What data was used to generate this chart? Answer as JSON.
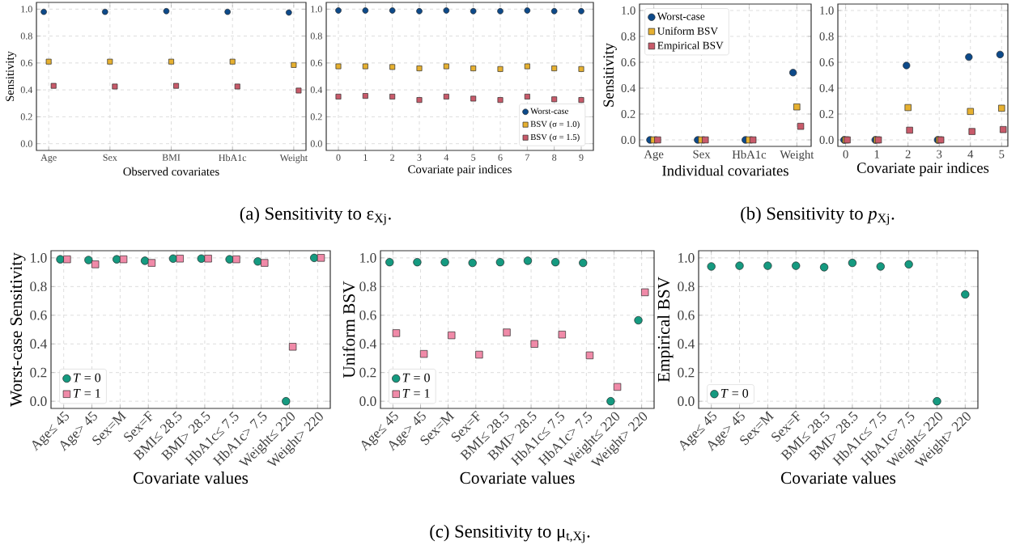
{
  "chart_data": [
    {
      "type": "scatter",
      "ylabel": "Sensitivity",
      "xlabel": "Observed covariates",
      "categories": [
        "Age",
        "Sex",
        "BMI",
        "HbA1c",
        "Weight"
      ],
      "ylim": [
        -0.05,
        1.05
      ],
      "yticks": [
        {
          "value": 0,
          "label": "0.0"
        },
        {
          "value": 0.2,
          "label": "0.2"
        },
        {
          "value": 0.4,
          "label": "0.4"
        },
        {
          "value": 0.6,
          "label": "0.6"
        },
        {
          "value": 0.8,
          "label": "0.8"
        },
        {
          "value": 1,
          "label": "1.0"
        }
      ],
      "grid": true,
      "legend": false,
      "annotations": [
        "(a) Sensitivity to ε$_{Xj}$."
      ],
      "series": [
        {
          "color": "#0d4a8a",
          "marker": "circle",
          "values": [
            0.98,
            0.98,
            0.985,
            0.98,
            0.975
          ]
        },
        {
          "color": "#e6b030",
          "marker": "square",
          "values": [
            0.61,
            0.61,
            0.61,
            0.61,
            0.585
          ]
        },
        {
          "color": "#c85a6a",
          "marker": "square",
          "values": [
            0.43,
            0.425,
            0.43,
            0.425,
            0.395
          ]
        }
      ]
    },
    {
      "type": "scatter",
      "xlabel": "Covariate pair indices",
      "x": [
        0,
        1,
        2,
        3,
        4,
        5,
        6,
        7,
        8,
        9
      ],
      "xlim": [
        -0.45,
        9.45
      ],
      "xticks": [
        0,
        1,
        2,
        3,
        4,
        5,
        6,
        7,
        8,
        9
      ],
      "ylim": [
        -0.05,
        1.05
      ],
      "yticks": [
        {
          "value": 0,
          "label": "0.0"
        },
        {
          "value": 0.2,
          "label": "0.2"
        },
        {
          "value": 0.4,
          "label": "0.4"
        },
        {
          "value": 0.6,
          "label": "0.6"
        },
        {
          "value": 0.8,
          "label": "0.8"
        },
        {
          "value": 1,
          "label": "1.0"
        }
      ],
      "grid": true,
      "legend": "bottom right",
      "series": [
        {
          "name": "Worst-case",
          "color": "#0d4a8a",
          "marker": "circle",
          "values": [
            0.99,
            0.99,
            0.99,
            0.985,
            0.99,
            0.985,
            0.985,
            0.99,
            0.985,
            0.985
          ]
        },
        {
          "name": "BSV (σ = 1.0)",
          "color": "#e6b030",
          "marker": "square",
          "values": [
            0.575,
            0.575,
            0.57,
            0.56,
            0.575,
            0.56,
            0.555,
            0.575,
            0.56,
            0.555
          ]
        },
        {
          "name": "BSV (σ = 1.5)",
          "color": "#c85a6a",
          "marker": "square",
          "values": [
            0.35,
            0.355,
            0.35,
            0.325,
            0.35,
            0.335,
            0.325,
            0.35,
            0.33,
            0.325
          ]
        }
      ]
    },
    {
      "type": "scatter",
      "ylabel": "Sensitivity",
      "xlabel": "Individual covariates",
      "categories": [
        "Age",
        "Sex",
        "HbA1c",
        "Weight"
      ],
      "ylim": [
        -0.05,
        1.05
      ],
      "yticks": [
        {
          "value": 0,
          "label": "0.0"
        },
        {
          "value": 0.2,
          "label": "0.2"
        },
        {
          "value": 0.4,
          "label": "0.4"
        },
        {
          "value": 0.6,
          "label": "0.6"
        },
        {
          "value": 0.8,
          "label": "0.8"
        },
        {
          "value": 1,
          "label": "1.0"
        }
      ],
      "grid": true,
      "legend": "top left",
      "annotations": [
        "(b) Sensitivity to *p*$_{Xj}$."
      ],
      "series": [
        {
          "name": "Worst-case",
          "color": "#0d4a8a",
          "marker": "circle",
          "values": [
            0,
            0,
            0,
            0.52
          ]
        },
        {
          "name": "Uniform BSV",
          "color": "#e6b030",
          "marker": "square",
          "values": [
            0,
            0,
            0,
            0.255
          ]
        },
        {
          "name": "Empirical BSV",
          "color": "#c85a6a",
          "marker": "square",
          "values": [
            0,
            0,
            0,
            0.105
          ]
        }
      ]
    },
    {
      "type": "scatter",
      "xlabel": "Covariate pair indices",
      "x": [
        0,
        1,
        2,
        3,
        4,
        5
      ],
      "xlim": [
        -0.25,
        5.2
      ],
      "xticks": [
        0,
        1,
        2,
        3,
        4,
        5
      ],
      "ylim": [
        -0.05,
        1.05
      ],
      "yticks": [
        {
          "value": 0,
          "label": "0.0"
        },
        {
          "value": 0.2,
          "label": "0.2"
        },
        {
          "value": 0.4,
          "label": "0.4"
        },
        {
          "value": 0.6,
          "label": "0.6"
        },
        {
          "value": 0.8,
          "label": "0.8"
        },
        {
          "value": 1,
          "label": "1.0"
        }
      ],
      "grid": true,
      "legend": false,
      "series": [
        {
          "color": "#0d4a8a",
          "marker": "circle",
          "x": [
            -0.05,
            0.95,
            1.95,
            2.95,
            3.95,
            4.95
          ],
          "values": [
            0,
            0,
            0.575,
            0,
            0.64,
            0.66
          ]
        },
        {
          "color": "#e6b030",
          "marker": "square",
          "values": [
            0,
            0,
            0.25,
            0,
            0.22,
            0.245
          ]
        },
        {
          "color": "#c85a6a",
          "marker": "square",
          "x": [
            0.05,
            1.05,
            2.05,
            3.05,
            4.05,
            5.05
          ],
          "values": [
            0,
            0,
            0.075,
            0,
            0.065,
            0.08
          ]
        }
      ]
    },
    {
      "type": "scatter",
      "ylabel": "Worst-case Sensitivity",
      "xlabel": "Covariate values",
      "categories": [
        "Age≤ 45",
        "Age> 45",
        "Sex=M",
        "Sex=F",
        "BMI≤ 28.5",
        "BMI> 28.5",
        "HbA1c≤ 7.5",
        "HbA1c> 7.5",
        "Weight≤ 220",
        "Weight> 220"
      ],
      "ylim": [
        -0.05,
        1.05
      ],
      "yticks": [
        {
          "value": 0,
          "label": "0.0"
        },
        {
          "value": 0.2,
          "label": "0.2"
        },
        {
          "value": 0.4,
          "label": "0.4"
        },
        {
          "value": 0.6,
          "label": "0.6"
        },
        {
          "value": 0.8,
          "label": "0.8"
        },
        {
          "value": 1,
          "label": "1.0"
        }
      ],
      "grid": true,
      "legend": "bottom left",
      "annotations": [
        "(c) Sensitivity to μ$_{t,Xj}$."
      ],
      "series": [
        {
          "name": "*T* = 0",
          "color": "#159a80",
          "marker": "circle",
          "values": [
            0.99,
            0.985,
            0.99,
            0.98,
            0.995,
            0.995,
            0.99,
            0.975,
            0,
            1.0
          ]
        },
        {
          "name": "*T* = 1",
          "color": "#f08aa8",
          "marker": "square",
          "values": [
            0.99,
            0.955,
            0.99,
            0.965,
            0.995,
            0.995,
            0.99,
            0.965,
            0.38,
            1.0
          ]
        }
      ]
    },
    {
      "type": "scatter",
      "ylabel": "Uniform BSV",
      "xlabel": "Covariate values",
      "categories": [
        "Age≤ 45",
        "Age> 45",
        "Sex=M",
        "Sex=F",
        "BMI≤ 28.5",
        "BMI> 28.5",
        "HbA1c≤ 7.5",
        "HbA1c> 7.5",
        "Weight≤ 220",
        "Weight> 220"
      ],
      "ylim": [
        -0.05,
        1.05
      ],
      "yticks": [
        {
          "value": 0,
          "label": "0.0"
        },
        {
          "value": 0.2,
          "label": "0.2"
        },
        {
          "value": 0.4,
          "label": "0.4"
        },
        {
          "value": 0.6,
          "label": "0.6"
        },
        {
          "value": 0.8,
          "label": "0.8"
        },
        {
          "value": 1,
          "label": "1.0"
        }
      ],
      "grid": true,
      "legend": "bottom left",
      "series": [
        {
          "name": "*T* = 0",
          "color": "#159a80",
          "marker": "circle",
          "values": [
            0.97,
            0.97,
            0.97,
            0.965,
            0.97,
            0.98,
            0.97,
            0.965,
            0,
            0.565
          ]
        },
        {
          "name": "*T* = 1",
          "color": "#f08aa8",
          "marker": "square",
          "values": [
            0.475,
            0.33,
            0.46,
            0.325,
            0.48,
            0.4,
            0.465,
            0.32,
            0.1,
            0.76
          ]
        }
      ]
    },
    {
      "type": "scatter",
      "ylabel": "Empirical BSV",
      "xlabel": "Covariate values",
      "categories": [
        "Age≤ 45",
        "Age> 45",
        "Sex=M",
        "Sex=F",
        "BMI≤ 28.5",
        "BMI> 28.5",
        "HbA1c≤ 7.5",
        "HbA1c> 7.5",
        "Weight≤ 220",
        "Weight> 220"
      ],
      "ylim": [
        -0.05,
        1.05
      ],
      "yticks": [
        {
          "value": 0,
          "label": "0.0"
        },
        {
          "value": 0.2,
          "label": "0.2"
        },
        {
          "value": 0.4,
          "label": "0.4"
        },
        {
          "value": 0.6,
          "label": "0.6"
        },
        {
          "value": 0.8,
          "label": "0.8"
        },
        {
          "value": 1,
          "label": "1.0"
        }
      ],
      "grid": true,
      "legend": "bottom left",
      "series": [
        {
          "name": "*T* = 0",
          "color": "#159a80",
          "marker": "circle",
          "values": [
            0.94,
            0.945,
            0.945,
            0.945,
            0.935,
            0.965,
            0.94,
            0.955,
            0,
            0.745
          ]
        }
      ]
    }
  ]
}
